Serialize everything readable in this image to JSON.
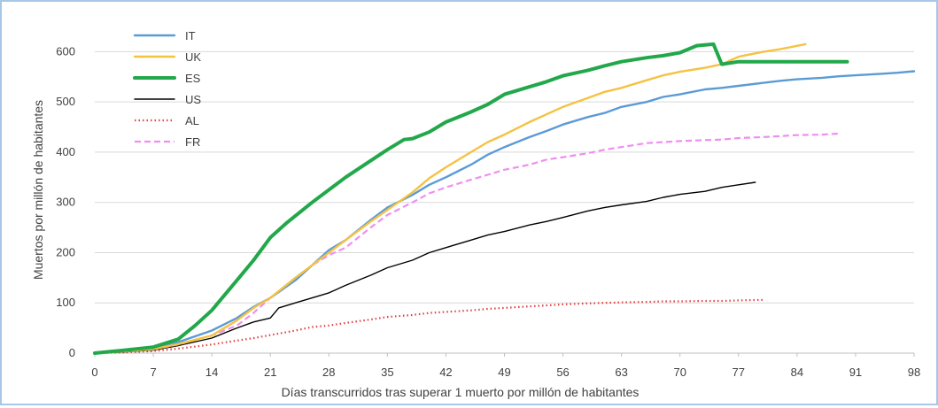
{
  "chart_data": {
    "type": "line",
    "title": "",
    "xlabel": "Días transcurridos tras superar 1 muerto por millón de habitantes",
    "ylabel": "Muertos por millón de habitantes",
    "xlim": [
      0,
      98
    ],
    "ylim": [
      0,
      650
    ],
    "x_ticks": [
      0,
      7,
      14,
      21,
      28,
      35,
      42,
      49,
      56,
      63,
      70,
      77,
      84,
      91,
      98
    ],
    "y_ticks": [
      0,
      100,
      200,
      300,
      400,
      500,
      600
    ],
    "grid": "horizontal",
    "legend_position": "top-left",
    "series": [
      {
        "name": "IT",
        "color": "#5b9bd5",
        "style": "solid",
        "x": [
          0,
          3,
          7,
          10,
          14,
          17,
          19,
          21,
          24,
          26,
          28,
          30,
          33,
          35,
          38,
          40,
          42,
          45,
          47,
          49,
          52,
          54,
          56,
          59,
          61,
          63,
          66,
          68,
          70,
          73,
          75,
          77,
          80,
          82,
          84,
          87,
          89,
          91,
          94,
          96,
          98
        ],
        "y": [
          0,
          4,
          10,
          22,
          45,
          70,
          92,
          110,
          145,
          175,
          205,
          225,
          265,
          290,
          315,
          335,
          350,
          375,
          395,
          410,
          430,
          442,
          455,
          470,
          478,
          490,
          500,
          510,
          515,
          525,
          528,
          532,
          538,
          542,
          545,
          548,
          551,
          553,
          556,
          558,
          561
        ]
      },
      {
        "name": "UK",
        "color": "#f5c242",
        "style": "solid",
        "x": [
          0,
          3,
          7,
          10,
          14,
          17,
          19,
          21,
          24,
          26,
          28,
          30,
          33,
          35,
          38,
          40,
          42,
          45,
          47,
          49,
          52,
          54,
          56,
          59,
          61,
          63,
          66,
          68,
          70,
          73,
          75,
          77,
          80,
          82,
          85
        ],
        "y": [
          0,
          3,
          8,
          18,
          35,
          65,
          90,
          110,
          150,
          175,
          200,
          225,
          262,
          285,
          320,
          348,
          370,
          400,
          420,
          435,
          460,
          475,
          490,
          508,
          520,
          528,
          543,
          553,
          560,
          568,
          575,
          590,
          600,
          605,
          615
        ]
      },
      {
        "name": "ES",
        "color": "#22a84a",
        "style": "solid-thick",
        "x": [
          0,
          3,
          7,
          10,
          12,
          14,
          17,
          19,
          21,
          23,
          26,
          28,
          30,
          33,
          35,
          37,
          38,
          40,
          42,
          45,
          47,
          49,
          52,
          54,
          56,
          59,
          61,
          63,
          66,
          68,
          70,
          72,
          74,
          75,
          77,
          80,
          84,
          87,
          90
        ],
        "y": [
          0,
          5,
          12,
          28,
          55,
          85,
          145,
          185,
          230,
          260,
          300,
          325,
          350,
          383,
          405,
          425,
          427,
          440,
          460,
          480,
          495,
          515,
          530,
          540,
          552,
          563,
          572,
          580,
          588,
          592,
          598,
          612,
          615,
          575,
          580,
          580,
          580,
          580,
          580
        ]
      },
      {
        "name": "US",
        "color": "#000000",
        "style": "solid-thin",
        "x": [
          0,
          3,
          7,
          10,
          14,
          17,
          19,
          21,
          22,
          24,
          26,
          28,
          30,
          33,
          35,
          38,
          40,
          42,
          45,
          47,
          49,
          52,
          54,
          56,
          59,
          61,
          63,
          66,
          68,
          70,
          73,
          75,
          77,
          79
        ],
        "y": [
          0,
          2,
          6,
          15,
          30,
          50,
          62,
          70,
          90,
          100,
          110,
          120,
          135,
          155,
          170,
          185,
          200,
          210,
          225,
          235,
          242,
          255,
          262,
          270,
          283,
          290,
          295,
          302,
          310,
          316,
          322,
          330,
          335,
          340
        ]
      },
      {
        "name": "AL",
        "color": "#e04040",
        "style": "dotted",
        "x": [
          0,
          3,
          7,
          10,
          14,
          17,
          19,
          21,
          24,
          26,
          28,
          30,
          33,
          35,
          38,
          40,
          42,
          45,
          47,
          49,
          52,
          54,
          56,
          59,
          61,
          63,
          66,
          68,
          70,
          73,
          75,
          77,
          80
        ],
        "y": [
          0,
          1,
          4,
          9,
          17,
          25,
          30,
          36,
          45,
          52,
          55,
          60,
          67,
          72,
          76,
          80,
          82,
          85,
          88,
          90,
          93,
          95,
          97,
          99,
          100,
          101,
          102,
          103,
          103,
          104,
          104,
          105,
          106
        ]
      },
      {
        "name": "FR",
        "color": "#ef8ef0",
        "style": "dashed",
        "x": [
          0,
          3,
          7,
          10,
          14,
          17,
          19,
          21,
          24,
          26,
          28,
          30,
          33,
          35,
          38,
          40,
          42,
          45,
          47,
          49,
          52,
          54,
          56,
          59,
          61,
          63,
          66,
          68,
          70,
          73,
          75,
          77,
          80,
          82,
          84,
          87,
          89
        ],
        "y": [
          0,
          3,
          8,
          17,
          35,
          55,
          80,
          110,
          150,
          175,
          195,
          210,
          250,
          275,
          300,
          318,
          330,
          345,
          355,
          365,
          375,
          385,
          390,
          398,
          405,
          410,
          418,
          420,
          422,
          424,
          425,
          428,
          430,
          432,
          434,
          435,
          437
        ]
      }
    ]
  }
}
